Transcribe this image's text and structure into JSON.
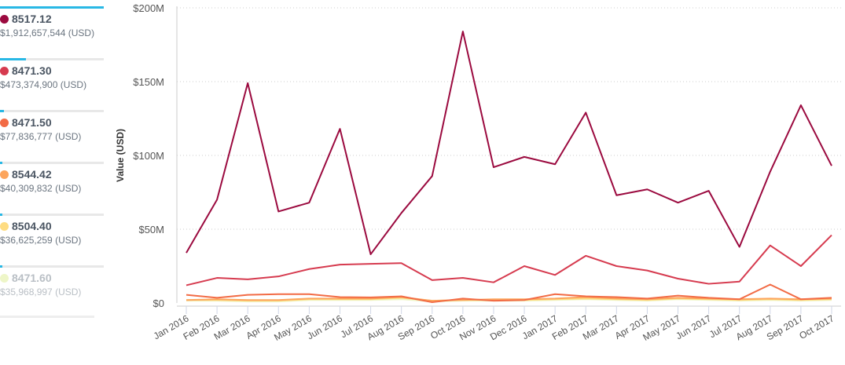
{
  "legend": [
    {
      "name": "8517.12",
      "total": "$1,912,657,544 (USD)",
      "share": 1.0,
      "color": "#9b0a3f"
    },
    {
      "name": "8471.30",
      "total": "$473,374,900 (USD)",
      "share": 0.247,
      "color": "#d63b4f"
    },
    {
      "name": "8471.50",
      "total": "$77,836,777 (USD)",
      "share": 0.041,
      "color": "#f26b45"
    },
    {
      "name": "8544.42",
      "total": "$40,309,832 (USD)",
      "share": 0.021,
      "color": "#fca55d"
    },
    {
      "name": "8504.40",
      "total": "$36,625,259 (USD)",
      "share": 0.019,
      "color": "#fedc82"
    },
    {
      "name": "8471.60",
      "total": "$35,968,997 (USD)",
      "share": 0.019,
      "color": "#eef6c8"
    }
  ],
  "chart_data": {
    "type": "line",
    "ylabel": "Value (USD)",
    "ylim": [
      0,
      200
    ],
    "yticks": [
      "$0",
      "$50M",
      "$100M",
      "$150M",
      "$200M"
    ],
    "categories": [
      "Jan 2016",
      "Feb 2016",
      "Mar 2016",
      "Apr 2016",
      "May 2016",
      "Jun 2016",
      "Jul 2016",
      "Aug 2016",
      "Sep 2016",
      "Oct 2016",
      "Nov 2016",
      "Dec 2016",
      "Jan 2017",
      "Feb 2017",
      "Mar 2017",
      "Apr 2017",
      "May 2017",
      "Jun 2017",
      "Jul 2017",
      "Aug 2017",
      "Sep 2017",
      "Oct 2017"
    ],
    "series": [
      {
        "name": "8517.12",
        "color": "#9b0a3f",
        "values": [
          34,
          70,
          149,
          62,
          68,
          118,
          33,
          61,
          86,
          184,
          92,
          99,
          94,
          129,
          73,
          77,
          68,
          76,
          38,
          89,
          134,
          93
        ]
      },
      {
        "name": "8471.30",
        "color": "#d63b4f",
        "values": [
          12,
          17,
          16,
          18,
          23,
          26,
          26.5,
          27,
          15.5,
          17,
          14,
          25,
          19,
          32,
          25,
          22,
          16.5,
          13,
          14.5,
          39,
          25,
          46
        ]
      },
      {
        "name": "8471.50",
        "color": "#f26b45",
        "values": [
          5.5,
          3.5,
          5.5,
          6,
          6,
          4,
          3.8,
          4.5,
          0.5,
          3,
          1.5,
          2,
          6,
          4.5,
          4,
          3,
          5,
          3.5,
          2.5,
          12.5,
          2.5,
          3.5
        ]
      },
      {
        "name": "8544.42",
        "color": "#fca55d",
        "values": [
          2,
          2.5,
          2,
          2,
          3,
          3,
          3,
          4,
          1.5,
          2,
          2.5,
          2.5,
          3,
          4,
          3,
          2.5,
          3.5,
          3,
          2.5,
          3,
          2.5,
          3
        ]
      },
      {
        "name": "8504.40",
        "color": "#fedc82",
        "values": [
          2,
          2,
          1.5,
          1.5,
          2.5,
          2.5,
          2.5,
          3.5,
          1.5,
          2,
          2,
          2,
          2.5,
          3,
          2.5,
          2,
          3,
          2.5,
          2,
          2.5,
          2,
          2.5
        ]
      },
      {
        "name": "8471.60",
        "color": "#eef6c8",
        "values": [
          1.5,
          1.5,
          1,
          1,
          2,
          2,
          2,
          2.5,
          1,
          1.5,
          1.5,
          1.5,
          2,
          2.5,
          2,
          1.5,
          2.5,
          2,
          1.5,
          2,
          1.5,
          2
        ]
      }
    ]
  }
}
